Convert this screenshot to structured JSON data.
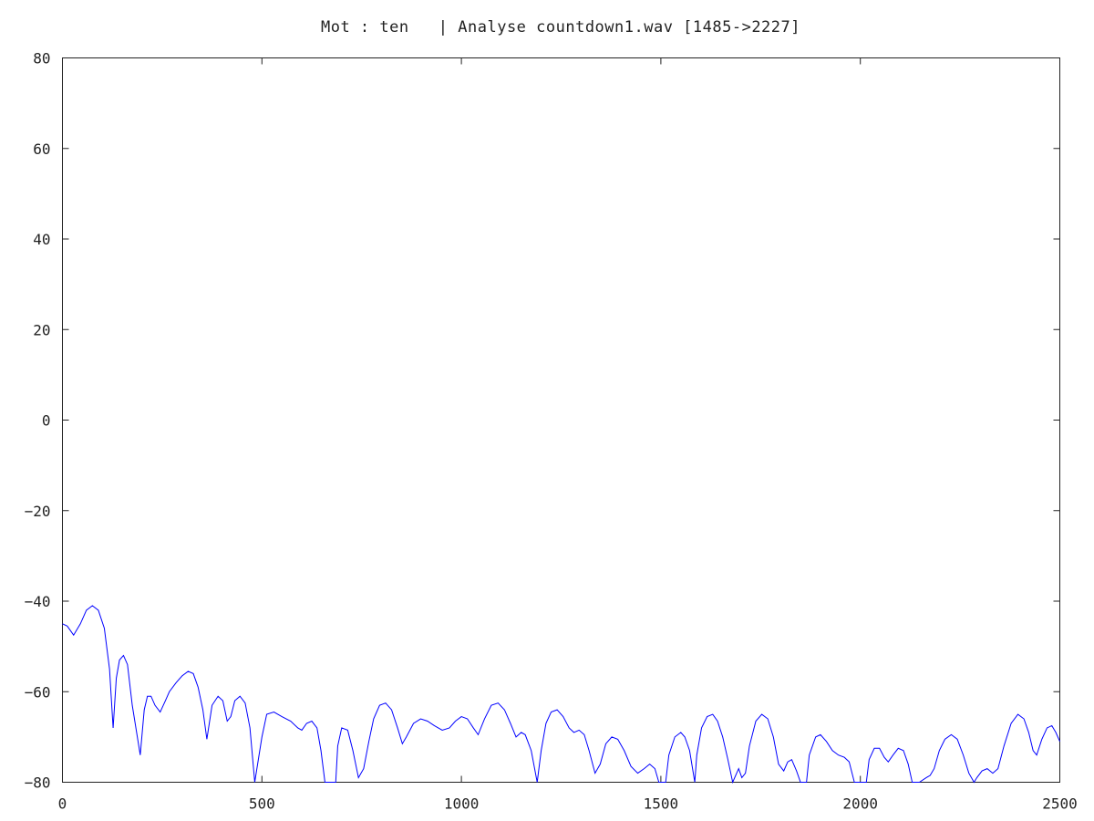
{
  "chart_data": {
    "type": "line",
    "title": "Mot : ten   | Analyse countdown1.wav [1485->2227]",
    "xlabel": "",
    "ylabel": "",
    "xlim": [
      0,
      2500
    ],
    "ylim": [
      -80,
      80
    ],
    "x_ticks": [
      0,
      500,
      1000,
      1500,
      2000,
      2500
    ],
    "y_ticks": [
      80,
      60,
      40,
      20,
      0,
      -20,
      -40,
      -60,
      -80
    ],
    "grid": false,
    "legend": "none",
    "series": [
      {
        "color": "#0000ff",
        "points": [
          [
            0,
            -45
          ],
          [
            12,
            -45.5
          ],
          [
            28,
            -47.5
          ],
          [
            45,
            -45
          ],
          [
            60,
            -42
          ],
          [
            75,
            -41
          ],
          [
            90,
            -42
          ],
          [
            105,
            -46
          ],
          [
            118,
            -55
          ],
          [
            127,
            -68
          ],
          [
            135,
            -57
          ],
          [
            143,
            -53
          ],
          [
            153,
            -52
          ],
          [
            163,
            -54
          ],
          [
            175,
            -63
          ],
          [
            195,
            -74
          ],
          [
            205,
            -64
          ],
          [
            213,
            -61
          ],
          [
            222,
            -61
          ],
          [
            232,
            -63
          ],
          [
            245,
            -64.5
          ],
          [
            258,
            -62
          ],
          [
            268,
            -60
          ],
          [
            285,
            -58
          ],
          [
            300,
            -56.5
          ],
          [
            315,
            -55.5
          ],
          [
            328,
            -56
          ],
          [
            340,
            -59
          ],
          [
            352,
            -64
          ],
          [
            362,
            -70.5
          ],
          [
            375,
            -63
          ],
          [
            390,
            -61
          ],
          [
            402,
            -62
          ],
          [
            413,
            -66.5
          ],
          [
            422,
            -65.5
          ],
          [
            432,
            -62
          ],
          [
            445,
            -61
          ],
          [
            458,
            -62.5
          ],
          [
            470,
            -68
          ],
          [
            482,
            -80
          ],
          [
            500,
            -70
          ],
          [
            512,
            -65
          ],
          [
            530,
            -64.5
          ],
          [
            550,
            -65.5
          ],
          [
            572,
            -66.5
          ],
          [
            590,
            -68
          ],
          [
            600,
            -68.5
          ],
          [
            612,
            -67
          ],
          [
            625,
            -66.5
          ],
          [
            638,
            -68
          ],
          [
            648,
            -73
          ],
          [
            658,
            -80
          ],
          [
            685,
            -80
          ],
          [
            690,
            -72
          ],
          [
            700,
            -68
          ],
          [
            715,
            -68.5
          ],
          [
            728,
            -73
          ],
          [
            742,
            -79
          ],
          [
            755,
            -77
          ],
          [
            768,
            -71
          ],
          [
            780,
            -66
          ],
          [
            795,
            -63
          ],
          [
            810,
            -62.5
          ],
          [
            825,
            -64
          ],
          [
            840,
            -68
          ],
          [
            852,
            -71.5
          ],
          [
            862,
            -70
          ],
          [
            880,
            -67
          ],
          [
            898,
            -66
          ],
          [
            915,
            -66.5
          ],
          [
            932,
            -67.5
          ],
          [
            952,
            -68.5
          ],
          [
            970,
            -68
          ],
          [
            985,
            -66.5
          ],
          [
            1000,
            -65.5
          ],
          [
            1015,
            -66
          ],
          [
            1030,
            -68
          ],
          [
            1042,
            -69.5
          ],
          [
            1058,
            -66
          ],
          [
            1075,
            -63
          ],
          [
            1092,
            -62.5
          ],
          [
            1108,
            -64
          ],
          [
            1123,
            -67
          ],
          [
            1137,
            -70
          ],
          [
            1150,
            -69
          ],
          [
            1160,
            -69.5
          ],
          [
            1175,
            -73
          ],
          [
            1190,
            -80
          ],
          [
            1200,
            -73
          ],
          [
            1212,
            -67
          ],
          [
            1225,
            -64.5
          ],
          [
            1240,
            -64
          ],
          [
            1255,
            -65.5
          ],
          [
            1270,
            -68
          ],
          [
            1282,
            -69
          ],
          [
            1295,
            -68.5
          ],
          [
            1308,
            -69.5
          ],
          [
            1320,
            -73
          ],
          [
            1335,
            -78
          ],
          [
            1348,
            -76
          ],
          [
            1362,
            -71.5
          ],
          [
            1377,
            -70
          ],
          [
            1392,
            -70.5
          ],
          [
            1408,
            -73
          ],
          [
            1425,
            -76.5
          ],
          [
            1442,
            -78
          ],
          [
            1458,
            -77
          ],
          [
            1472,
            -76
          ],
          [
            1485,
            -77
          ],
          [
            1495,
            -80
          ],
          [
            1512,
            -80
          ],
          [
            1520,
            -74
          ],
          [
            1535,
            -70
          ],
          [
            1550,
            -69
          ],
          [
            1560,
            -70
          ],
          [
            1572,
            -73
          ],
          [
            1585,
            -80
          ],
          [
            1590,
            -74
          ],
          [
            1602,
            -68
          ],
          [
            1616,
            -65.5
          ],
          [
            1630,
            -65
          ],
          [
            1642,
            -66.5
          ],
          [
            1655,
            -70
          ],
          [
            1668,
            -75
          ],
          [
            1680,
            -80
          ],
          [
            1695,
            -77
          ],
          [
            1703,
            -79
          ],
          [
            1712,
            -78
          ],
          [
            1722,
            -72
          ],
          [
            1738,
            -66.5
          ],
          [
            1753,
            -65
          ],
          [
            1768,
            -66
          ],
          [
            1782,
            -70
          ],
          [
            1795,
            -76
          ],
          [
            1808,
            -77.5
          ],
          [
            1818,
            -75.5
          ],
          [
            1828,
            -75
          ],
          [
            1840,
            -77.5
          ],
          [
            1850,
            -80
          ],
          [
            1865,
            -80
          ],
          [
            1872,
            -74
          ],
          [
            1888,
            -70
          ],
          [
            1900,
            -69.5
          ],
          [
            1915,
            -71
          ],
          [
            1930,
            -73
          ],
          [
            1945,
            -74
          ],
          [
            1960,
            -74.5
          ],
          [
            1972,
            -75.5
          ],
          [
            1985,
            -80
          ],
          [
            2015,
            -80
          ],
          [
            2022,
            -75
          ],
          [
            2035,
            -72.5
          ],
          [
            2048,
            -72.5
          ],
          [
            2060,
            -74.5
          ],
          [
            2070,
            -75.5
          ],
          [
            2082,
            -74
          ],
          [
            2095,
            -72.5
          ],
          [
            2108,
            -73
          ],
          [
            2120,
            -76
          ],
          [
            2130,
            -80
          ],
          [
            2148,
            -80
          ],
          [
            2165,
            -79
          ],
          [
            2175,
            -78.5
          ],
          [
            2185,
            -77
          ],
          [
            2198,
            -73
          ],
          [
            2212,
            -70.5
          ],
          [
            2228,
            -69.5
          ],
          [
            2243,
            -70.5
          ],
          [
            2258,
            -74
          ],
          [
            2272,
            -78
          ],
          [
            2285,
            -80
          ],
          [
            2292,
            -79
          ],
          [
            2305,
            -77.5
          ],
          [
            2318,
            -77
          ],
          [
            2332,
            -78
          ],
          [
            2345,
            -77
          ],
          [
            2360,
            -72
          ],
          [
            2378,
            -67
          ],
          [
            2395,
            -65
          ],
          [
            2410,
            -66
          ],
          [
            2422,
            -69
          ],
          [
            2433,
            -73
          ],
          [
            2442,
            -74
          ],
          [
            2455,
            -70.5
          ],
          [
            2468,
            -68
          ],
          [
            2480,
            -67.5
          ],
          [
            2490,
            -69
          ],
          [
            2500,
            -71
          ]
        ]
      }
    ]
  }
}
